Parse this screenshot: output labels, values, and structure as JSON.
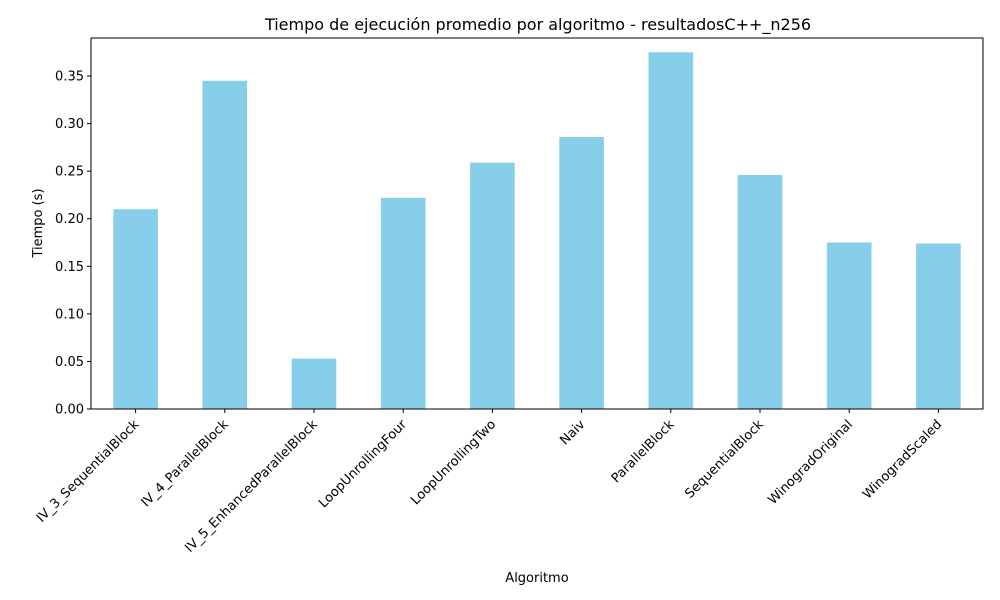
{
  "chart_data": {
    "type": "bar",
    "title": "Tiempo de ejecución promedio por algoritmo - resultadosC++_n256",
    "xlabel": "Algoritmo",
    "ylabel": "Tiempo (s)",
    "categories": [
      "IV_3_SequentialBlock",
      "IV_4_ParallelBlock",
      "IV_5_EnhancedParallelBlock",
      "LoopUnrollingFour",
      "LoopUnrollingTwo",
      "Naiv",
      "ParallelBlock",
      "SequentialBlock",
      "WinogradOriginal",
      "WinogradScaled"
    ],
    "values": [
      0.21,
      0.345,
      0.053,
      0.222,
      0.259,
      0.286,
      0.375,
      0.246,
      0.175,
      0.174
    ],
    "ylim": [
      0,
      0.39
    ],
    "yticks": [
      "0.00",
      "0.05",
      "0.10",
      "0.15",
      "0.20",
      "0.25",
      "0.30",
      "0.35"
    ],
    "grid": false,
    "bar_color": "#87CEEB"
  }
}
